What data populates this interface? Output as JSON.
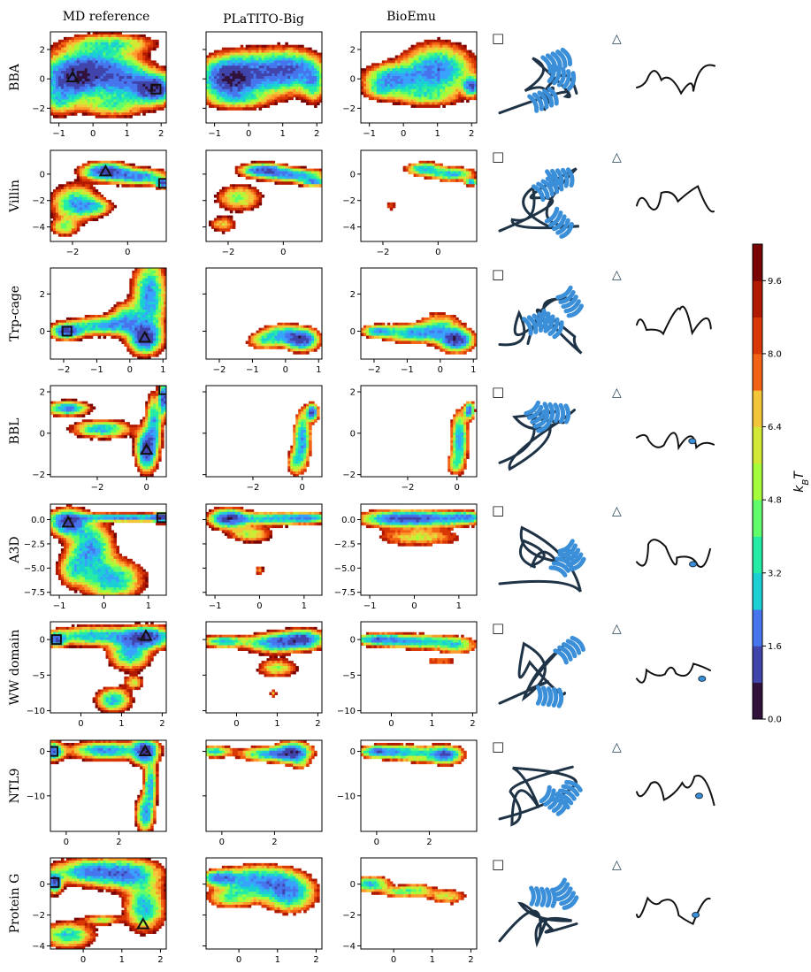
{
  "chart_data": {
    "type": "heatmap",
    "column_titles": [
      "MD reference",
      "PLaTITO-Big",
      "BioEmu"
    ],
    "marker_legend": [
      {
        "symbol": "square",
        "glyph": "□"
      },
      {
        "symbol": "triangle",
        "glyph": "△"
      }
    ],
    "colorbar": {
      "label": "k_BT",
      "label_main": "k",
      "label_sub": "B",
      "label_tail": "T",
      "range": [
        0.0,
        10.4
      ],
      "ticks": [
        "0.0",
        "1.6",
        "3.2",
        "4.8",
        "6.4",
        "8.0",
        "9.6"
      ],
      "levels": [
        0.0,
        0.8,
        1.6,
        2.4,
        3.2,
        4.0,
        4.8,
        5.6,
        6.4,
        7.2,
        8.0,
        8.8,
        9.6,
        10.4
      ],
      "colors": [
        "#30123b",
        "#4145ab",
        "#4675ed",
        "#39a2fc",
        "#1bcfd4",
        "#24eca6",
        "#61fc6c",
        "#a4fc3b",
        "#d1e834",
        "#f3c63a",
        "#fe9b2d",
        "#f36315",
        "#d93806",
        "#b11901",
        "#7a0403"
      ]
    },
    "rows": [
      {
        "name": "BBA",
        "xlim": [
          -1.25,
          2.15
        ],
        "ylim": [
          -3.0,
          3.2
        ],
        "xticks": [
          {
            "v": -1,
            "t": "−1"
          },
          {
            "v": 0,
            "t": "0"
          },
          {
            "v": 1,
            "t": "1"
          },
          {
            "v": 2,
            "t": "2"
          }
        ],
        "yticks": [
          {
            "v": -2,
            "t": "−2"
          },
          {
            "v": 0,
            "t": "0"
          },
          {
            "v": 2,
            "t": "2"
          }
        ],
        "square": [
          1.85,
          -0.7
        ],
        "triangle": [
          -0.6,
          0.1
        ]
      },
      {
        "name": "Villin",
        "xlim": [
          -2.8,
          1.4
        ],
        "ylim": [
          -5.1,
          1.8
        ],
        "xticks": [
          {
            "v": -2,
            "t": "−2"
          },
          {
            "v": 0,
            "t": "0"
          }
        ],
        "yticks": [
          {
            "v": -4,
            "t": "−4"
          },
          {
            "v": -2,
            "t": "−2"
          },
          {
            "v": 0,
            "t": "0"
          }
        ],
        "square": [
          1.3,
          -0.7
        ],
        "triangle": [
          -0.8,
          0.2
        ]
      },
      {
        "name": "Trp-cage",
        "xlim": [
          -2.4,
          1.1
        ],
        "ylim": [
          -1.5,
          3.4
        ],
        "xticks": [
          {
            "v": -2,
            "t": "−2"
          },
          {
            "v": -1,
            "t": "−1"
          },
          {
            "v": 0,
            "t": "0"
          },
          {
            "v": 1,
            "t": "1"
          }
        ],
        "yticks": [
          {
            "v": 0,
            "t": "0"
          },
          {
            "v": 2,
            "t": "2"
          }
        ],
        "square": [
          -1.9,
          0.0
        ],
        "triangle": [
          0.45,
          -0.35
        ]
      },
      {
        "name": "BBL",
        "xlim": [
          -3.9,
          0.8
        ],
        "ylim": [
          -2.1,
          2.3
        ],
        "xticks": [
          {
            "v": -2,
            "t": "−2"
          },
          {
            "v": 0,
            "t": "0"
          }
        ],
        "yticks": [
          {
            "v": -2,
            "t": "−2"
          },
          {
            "v": 0,
            "t": "0"
          },
          {
            "v": 2,
            "t": "2"
          }
        ],
        "square": [
          0.7,
          2.1
        ],
        "triangle": [
          0.0,
          -0.8
        ]
      },
      {
        "name": "A3D",
        "xlim": [
          -1.2,
          1.4
        ],
        "ylim": [
          -7.8,
          1.6
        ],
        "xticks": [
          {
            "v": -1,
            "t": "−1"
          },
          {
            "v": 0,
            "t": "0"
          },
          {
            "v": 1,
            "t": "1"
          }
        ],
        "yticks": [
          {
            "v": -7.5,
            "t": "−7.5"
          },
          {
            "v": -5.0,
            "t": "−5.0"
          },
          {
            "v": -2.5,
            "t": "−2.5"
          },
          {
            "v": 0.0,
            "t": "0.0"
          }
        ],
        "square": [
          1.3,
          0.2
        ],
        "triangle": [
          -0.8,
          -0.3
        ]
      },
      {
        "name": "WW domain",
        "xlim": [
          -0.75,
          2.1
        ],
        "ylim": [
          -10.3,
          2.5
        ],
        "xticks": [
          {
            "v": 0,
            "t": "0"
          },
          {
            "v": 1,
            "t": "1"
          },
          {
            "v": 2,
            "t": "2"
          }
        ],
        "yticks": [
          {
            "v": -10,
            "t": "−10"
          },
          {
            "v": -5,
            "t": "−5"
          },
          {
            "v": 0,
            "t": "0"
          }
        ],
        "square": [
          -0.6,
          0.0
        ],
        "triangle": [
          1.6,
          0.5
        ]
      },
      {
        "name": "NTL9",
        "xlim": [
          -0.6,
          3.8
        ],
        "ylim": [
          -18.0,
          2.5
        ],
        "xticks": [
          {
            "v": 0,
            "t": "0"
          },
          {
            "v": 2,
            "t": "2"
          }
        ],
        "yticks": [
          {
            "v": -10,
            "t": "−10"
          },
          {
            "v": 0,
            "t": "0"
          }
        ],
        "square": [
          -0.5,
          0.0
        ],
        "triangle": [
          3.0,
          0.0
        ]
      },
      {
        "name": "Protein G",
        "xlim": [
          -0.85,
          2.15
        ],
        "ylim": [
          -4.2,
          1.7
        ],
        "xticks": [
          {
            "v": 0,
            "t": "0"
          },
          {
            "v": 1,
            "t": "1"
          },
          {
            "v": 2,
            "t": "2"
          }
        ],
        "yticks": [
          {
            "v": -4,
            "t": "−4"
          },
          {
            "v": -2,
            "t": "−2"
          },
          {
            "v": 0,
            "t": "0"
          }
        ],
        "square": [
          -0.75,
          0.1
        ],
        "triangle": [
          1.55,
          -2.6
        ]
      }
    ]
  }
}
